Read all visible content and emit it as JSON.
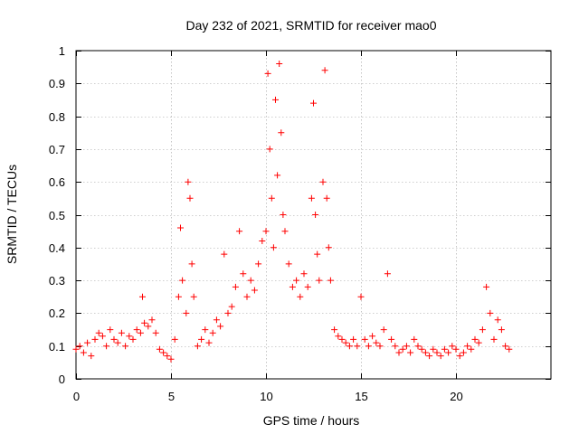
{
  "chart_data": {
    "type": "scatter",
    "title": "Day 232 of 2021, SRMTID for receiver mao0",
    "xlabel": "GPS time / hours",
    "ylabel": "SRMTID / TECUs",
    "xlim": [
      0,
      25
    ],
    "ylim": [
      0,
      1
    ],
    "x_ticks": [
      0,
      5,
      10,
      15,
      20
    ],
    "x_tick_labels": [
      "0",
      "5",
      "10",
      "15",
      "20"
    ],
    "y_ticks": [
      0,
      0.1,
      0.2,
      0.3,
      0.4,
      0.5,
      0.6,
      0.7,
      0.8,
      0.9,
      1
    ],
    "y_tick_labels": [
      "0",
      "0.1",
      "0.2",
      "0.3",
      "0.4",
      "0.5",
      "0.6",
      "0.7",
      "0.8",
      "0.9",
      "1"
    ],
    "grid": true,
    "marker": "+",
    "series": [
      {
        "name": "SRMTID",
        "color": "#ff0000",
        "x": [
          0.0,
          0.2,
          0.4,
          0.6,
          0.8,
          1.0,
          1.2,
          1.4,
          1.6,
          1.8,
          2.0,
          2.2,
          2.4,
          2.6,
          2.8,
          3.0,
          3.2,
          3.4,
          3.5,
          3.6,
          3.8,
          4.0,
          4.2,
          4.4,
          4.6,
          4.8,
          5.0,
          5.2,
          5.4,
          5.5,
          5.6,
          5.8,
          5.9,
          6.0,
          6.1,
          6.2,
          6.4,
          6.6,
          6.8,
          7.0,
          7.2,
          7.4,
          7.6,
          7.8,
          8.0,
          8.2,
          8.4,
          8.6,
          8.8,
          9.0,
          9.2,
          9.4,
          9.6,
          9.8,
          10.0,
          10.1,
          10.2,
          10.3,
          10.4,
          10.5,
          10.6,
          10.7,
          10.8,
          10.9,
          11.0,
          11.2,
          11.4,
          11.6,
          11.8,
          12.0,
          12.2,
          12.4,
          12.5,
          12.6,
          12.7,
          12.8,
          13.0,
          13.1,
          13.2,
          13.3,
          13.4,
          13.6,
          13.8,
          14.0,
          14.2,
          14.4,
          14.6,
          14.8,
          15.0,
          15.2,
          15.4,
          15.6,
          15.8,
          16.0,
          16.2,
          16.4,
          16.6,
          16.8,
          17.0,
          17.2,
          17.4,
          17.6,
          17.8,
          18.0,
          18.2,
          18.4,
          18.6,
          18.8,
          19.0,
          19.2,
          19.4,
          19.6,
          19.8,
          20.0,
          20.2,
          20.4,
          20.6,
          20.8,
          21.0,
          21.2,
          21.4,
          21.6,
          21.8,
          22.0,
          22.2,
          22.4,
          22.6,
          22.8
        ],
        "y": [
          0.09,
          0.1,
          0.08,
          0.11,
          0.07,
          0.12,
          0.14,
          0.13,
          0.1,
          0.15,
          0.12,
          0.11,
          0.14,
          0.1,
          0.13,
          0.12,
          0.15,
          0.14,
          0.25,
          0.17,
          0.16,
          0.18,
          0.14,
          0.09,
          0.08,
          0.07,
          0.06,
          0.12,
          0.25,
          0.46,
          0.3,
          0.2,
          0.6,
          0.55,
          0.35,
          0.25,
          0.1,
          0.12,
          0.15,
          0.11,
          0.14,
          0.18,
          0.16,
          0.38,
          0.2,
          0.22,
          0.28,
          0.45,
          0.32,
          0.25,
          0.3,
          0.27,
          0.35,
          0.42,
          0.45,
          0.93,
          0.7,
          0.55,
          0.4,
          0.85,
          0.62,
          0.96,
          0.75,
          0.5,
          0.45,
          0.35,
          0.28,
          0.3,
          0.25,
          0.32,
          0.28,
          0.55,
          0.84,
          0.5,
          0.38,
          0.3,
          0.6,
          0.94,
          0.55,
          0.4,
          0.3,
          0.15,
          0.13,
          0.12,
          0.11,
          0.1,
          0.12,
          0.1,
          0.25,
          0.12,
          0.1,
          0.13,
          0.11,
          0.1,
          0.15,
          0.32,
          0.12,
          0.1,
          0.08,
          0.09,
          0.1,
          0.08,
          0.12,
          0.1,
          0.09,
          0.08,
          0.07,
          0.09,
          0.08,
          0.07,
          0.09,
          0.08,
          0.1,
          0.09,
          0.07,
          0.08,
          0.1,
          0.09,
          0.12,
          0.11,
          0.15,
          0.28,
          0.2,
          0.12,
          0.18,
          0.15,
          0.1,
          0.09
        ]
      }
    ]
  }
}
